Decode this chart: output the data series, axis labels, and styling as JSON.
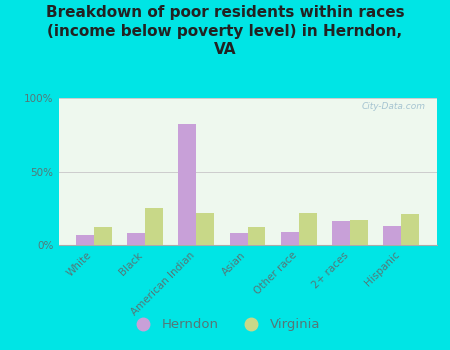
{
  "title": "Breakdown of poor residents within races\n(income below poverty level) in Herndon,\nVA",
  "categories": [
    "White",
    "Black",
    "American Indian",
    "Asian",
    "Other race",
    "2+ races",
    "Hispanic"
  ],
  "herndon_values": [
    7,
    8,
    82,
    8,
    9,
    16,
    13
  ],
  "virginia_values": [
    12,
    25,
    22,
    12,
    22,
    17,
    21
  ],
  "herndon_color": "#c8a0d8",
  "virginia_color": "#c8d888",
  "background_outer": "#00e5e5",
  "background_plot": "#eef8ee",
  "grid_color": "#cccccc",
  "title_fontsize": 11,
  "tick_fontsize": 7.5,
  "label_color": "#557777",
  "ylim": [
    0,
    100
  ],
  "yticks": [
    0,
    50,
    100
  ],
  "ytick_labels": [
    "0%",
    "50%",
    "100%"
  ],
  "watermark": "City-Data.com",
  "legend_herndon": "Herndon",
  "legend_virginia": "Virginia"
}
